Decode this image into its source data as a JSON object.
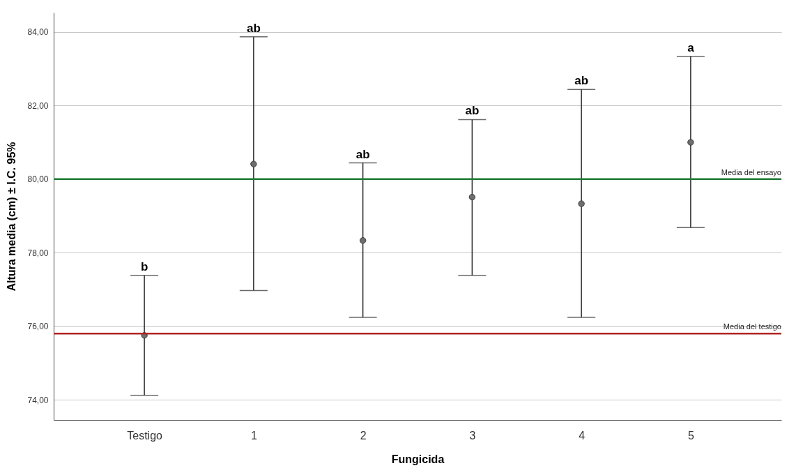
{
  "chart_data": {
    "type": "scatter",
    "xlabel": "Fungicida",
    "ylabel": "Altura media (cm) ± I.C. 95%",
    "categories": [
      "Testigo",
      "1",
      "2",
      "3",
      "4",
      "5"
    ],
    "series": [
      {
        "color": "#6e6e6e",
        "values": [
          75.75,
          80.41,
          78.33,
          79.51,
          79.33,
          81.0
        ],
        "errors": [
          [
            74.12,
            77.38
          ],
          [
            76.97,
            83.87
          ],
          [
            76.24,
            80.44
          ],
          [
            77.38,
            81.62
          ],
          [
            76.24,
            82.44
          ],
          [
            78.68,
            83.34
          ]
        ]
      }
    ],
    "marker": "circle",
    "ylim": [
      73.45,
      84.53
    ],
    "yticks": [
      {
        "value": 74,
        "label": "74,00"
      },
      {
        "value": 76,
        "label": "76,00"
      },
      {
        "value": 78,
        "label": "78,00"
      },
      {
        "value": 80,
        "label": "80,00"
      },
      {
        "value": 82,
        "label": "82,00"
      },
      {
        "value": 84,
        "label": "84,00"
      }
    ],
    "grid": "y",
    "ref_lines": [
      {
        "axis": "y",
        "value": 80.0,
        "label": "Media del ensayo",
        "color": "#1e7b34"
      },
      {
        "axis": "y",
        "value": 75.8,
        "label": "Media del testigo",
        "color": "#b22222"
      }
    ],
    "annotations": [
      {
        "text": "b",
        "x": "Testigo",
        "y": 77.38
      },
      {
        "text": "ab",
        "x": "1",
        "y": 83.87
      },
      {
        "text": "ab",
        "x": "2",
        "y": 80.44
      },
      {
        "text": "ab",
        "x": "3",
        "y": 81.62
      },
      {
        "text": "ab",
        "x": "4",
        "y": 82.44
      },
      {
        "text": "a",
        "x": "5",
        "y": 83.34
      }
    ]
  }
}
